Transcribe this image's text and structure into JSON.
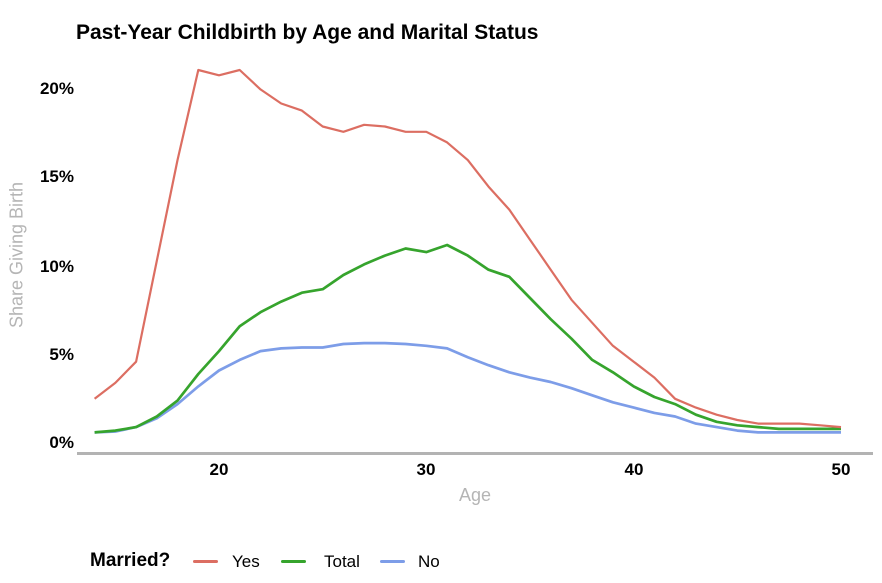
{
  "title": "Past-Year Childbirth by Age and Marital Status",
  "axes": {
    "x_label": "Age",
    "y_label": "Share Giving Birth",
    "x_ticks": [
      "20",
      "30",
      "40",
      "50"
    ],
    "y_ticks": [
      "0%",
      "5%",
      "10%",
      "15%",
      "20%"
    ]
  },
  "legend": {
    "title": "Married?",
    "items": [
      {
        "label": "Yes",
        "color": "#dc6e62"
      },
      {
        "label": "Total",
        "color": "#36a42d"
      },
      {
        "label": "No",
        "color": "#7d9de8"
      }
    ]
  },
  "colors": {
    "axis_line": "#b3b3b3",
    "axis_title_text": "#b5b5b5",
    "tick_text": "#000000",
    "series_yes": "#dc6e62",
    "series_total": "#36a42d",
    "series_no": "#7d9de8"
  },
  "chart_data": {
    "type": "line",
    "title": "Past-Year Childbirth by Age and Marital Status",
    "xlabel": "Age",
    "ylabel": "Share Giving Birth",
    "x_ticks": [
      20,
      30,
      40,
      50
    ],
    "y_ticks_pct": [
      0,
      5,
      10,
      15,
      20
    ],
    "xlim": [
      13.2,
      51.5
    ],
    "ylim": [
      0,
      22
    ],
    "grid": false,
    "legend_position": "bottom",
    "legend_title": "Married?",
    "x": [
      14,
      15,
      16,
      17,
      18,
      19,
      20,
      21,
      22,
      23,
      24,
      25,
      26,
      27,
      28,
      29,
      30,
      31,
      32,
      33,
      34,
      35,
      36,
      37,
      38,
      39,
      40,
      41,
      42,
      43,
      44,
      45,
      46,
      47,
      48,
      49,
      50
    ],
    "series": [
      {
        "name": "Yes",
        "color": "#dc6e62",
        "values_pct": [
          2.5,
          3.4,
          4.6,
          10.3,
          16.0,
          21.1,
          20.8,
          21.1,
          20.0,
          19.2,
          18.8,
          17.9,
          17.6,
          18.0,
          17.9,
          17.6,
          17.6,
          17.0,
          16.0,
          14.5,
          13.2,
          11.5,
          9.8,
          8.1,
          6.8,
          5.5,
          4.6,
          3.7,
          2.5,
          2.0,
          1.6,
          1.3,
          1.1,
          1.1,
          1.1,
          1.0,
          0.9
        ]
      },
      {
        "name": "Total",
        "color": "#36a42d",
        "values_pct": [
          0.6,
          0.7,
          0.9,
          1.5,
          2.4,
          3.9,
          5.2,
          6.6,
          7.4,
          8.0,
          8.5,
          8.7,
          9.5,
          10.1,
          10.6,
          11.0,
          10.8,
          11.2,
          10.6,
          9.8,
          9.4,
          8.2,
          7.0,
          5.9,
          4.7,
          4.0,
          3.2,
          2.6,
          2.2,
          1.6,
          1.2,
          1.0,
          0.9,
          0.8,
          0.8,
          0.8,
          0.8
        ]
      },
      {
        "name": "No",
        "color": "#7d9de8",
        "values_pct": [
          0.6,
          0.65,
          0.9,
          1.4,
          2.2,
          3.2,
          4.1,
          4.7,
          5.2,
          5.35,
          5.4,
          5.4,
          5.6,
          5.65,
          5.65,
          5.6,
          5.5,
          5.35,
          4.85,
          4.4,
          4.0,
          3.7,
          3.45,
          3.1,
          2.7,
          2.3,
          2.0,
          1.7,
          1.5,
          1.1,
          0.9,
          0.7,
          0.6,
          0.6,
          0.6,
          0.6,
          0.6
        ]
      }
    ]
  }
}
